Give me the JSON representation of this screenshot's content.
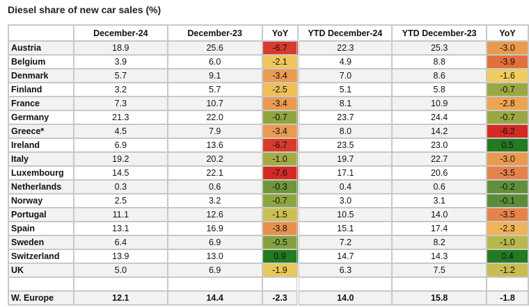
{
  "chart_data": {
    "type": "table",
    "title": "Diesel share of new car sales (%)",
    "columns": [
      "",
      "December-24",
      "December-23",
      "YoY",
      "YTD December-24",
      "YTD December-23",
      "YoY"
    ],
    "rows": [
      {
        "country": "Austria",
        "dec24": "18.9",
        "dec23": "25.6",
        "yoy": "-6.7",
        "yoy_color": "#d83b2b",
        "ytd24": "22.3",
        "ytd23": "25.3",
        "ytd_yoy": "-3.0",
        "ytd_yoy_color": "#ea9a4e"
      },
      {
        "country": "Belgium",
        "dec24": "3.9",
        "dec23": "6.0",
        "yoy": "-2.1",
        "yoy_color": "#f0c75e",
        "ytd24": "4.9",
        "ytd23": "8.8",
        "ytd_yoy": "-3.9",
        "ytd_yoy_color": "#e3703c"
      },
      {
        "country": "Denmark",
        "dec24": "5.7",
        "dec23": "9.1",
        "yoy": "-3.4",
        "yoy_color": "#ea9b4f",
        "ytd24": "7.0",
        "ytd23": "8.6",
        "ytd_yoy": "-1.6",
        "ytd_yoy_color": "#f1cc60"
      },
      {
        "country": "Finland",
        "dec24": "3.2",
        "dec23": "5.7",
        "yoy": "-2.5",
        "yoy_color": "#efbf5a",
        "ytd24": "5.1",
        "ytd23": "5.8",
        "ytd_yoy": "-0.7",
        "ytd_yoy_color": "#9aa843"
      },
      {
        "country": "France",
        "dec24": "7.3",
        "dec23": "10.7",
        "yoy": "-3.4",
        "yoy_color": "#ea9b4f",
        "ytd24": "8.1",
        "ytd23": "10.9",
        "ytd_yoy": "-2.8",
        "ytd_yoy_color": "#eda452"
      },
      {
        "country": "Germany",
        "dec24": "21.3",
        "dec23": "22.0",
        "yoy": "-0.7",
        "yoy_color": "#8fa640",
        "ytd24": "23.7",
        "ytd23": "24.4",
        "ytd_yoy": "-0.7",
        "ytd_yoy_color": "#9aa843"
      },
      {
        "country": "Greece*",
        "dec24": "4.5",
        "dec23": "7.9",
        "yoy": "-3.4",
        "yoy_color": "#ea9b4f",
        "ytd24": "8.0",
        "ytd23": "14.2",
        "ytd_yoy": "-6.2",
        "ytd_yoy_color": "#d42a24"
      },
      {
        "country": "Ireland",
        "dec24": "6.9",
        "dec23": "13.6",
        "yoy": "-6.7",
        "yoy_color": "#d83b2b",
        "ytd24": "23.5",
        "ytd23": "23.0",
        "ytd_yoy": "0.5",
        "ytd_yoy_color": "#237a21"
      },
      {
        "country": "Italy",
        "dec24": "19.2",
        "dec23": "20.2",
        "yoy": "-1.0",
        "yoy_color": "#a3ab45",
        "ytd24": "19.7",
        "ytd23": "22.7",
        "ytd_yoy": "-3.0",
        "ytd_yoy_color": "#ea9a4e"
      },
      {
        "country": "Luxembourg",
        "dec24": "14.5",
        "dec23": "22.1",
        "yoy": "-7.6",
        "yoy_color": "#d42a24",
        "ytd24": "17.1",
        "ytd23": "20.6",
        "ytd_yoy": "-3.5",
        "ytd_yoy_color": "#e6834a"
      },
      {
        "country": "Netherlands",
        "dec24": "0.3",
        "dec23": "0.6",
        "yoy": "-0.3",
        "yoy_color": "#6f963a",
        "ytd24": "0.4",
        "ytd23": "0.6",
        "ytd_yoy": "-0.2",
        "ytd_yoy_color": "#62903a"
      },
      {
        "country": "Norway",
        "dec24": "2.5",
        "dec23": "3.2",
        "yoy": "-0.7",
        "yoy_color": "#8fa640",
        "ytd24": "3.0",
        "ytd23": "3.1",
        "ytd_yoy": "-0.1",
        "ytd_yoy_color": "#5b8d38"
      },
      {
        "country": "Portugal",
        "dec24": "11.1",
        "dec23": "12.6",
        "yoy": "-1.5",
        "yoy_color": "#cdbf55",
        "ytd24": "10.5",
        "ytd23": "14.0",
        "ytd_yoy": "-3.5",
        "ytd_yoy_color": "#e6834a"
      },
      {
        "country": "Spain",
        "dec24": "13.1",
        "dec23": "16.9",
        "yoy": "-3.8",
        "yoy_color": "#e8904a",
        "ytd24": "15.1",
        "ytd23": "17.4",
        "ytd_yoy": "-2.3",
        "ytd_yoy_color": "#efb457"
      },
      {
        "country": "Sweden",
        "dec24": "6.4",
        "dec23": "6.9",
        "yoy": "-0.5",
        "yoy_color": "#84a23e",
        "ytd24": "7.2",
        "ytd23": "8.2",
        "ytd_yoy": "-1.0",
        "ytd_yoy_color": "#b8b84c"
      },
      {
        "country": "Switzerland",
        "dec24": "13.9",
        "dec23": "13.0",
        "yoy": "0.9",
        "yoy_color": "#237a21",
        "ytd24": "14.7",
        "ytd23": "14.3",
        "ytd_yoy": "0.4",
        "ytd_yoy_color": "#237a21"
      },
      {
        "country": "UK",
        "dec24": "5.0",
        "dec23": "6.9",
        "yoy": "-1.9",
        "yoy_color": "#e9c85c",
        "ytd24": "6.3",
        "ytd23": "7.5",
        "ytd_yoy": "-1.2",
        "ytd_yoy_color": "#c8bd53"
      }
    ],
    "total": {
      "country": "W. Europe",
      "dec24": "12.1",
      "dec23": "14.4",
      "yoy": "-2.3",
      "ytd24": "14.0",
      "ytd23": "15.8",
      "ytd_yoy": "-1.8"
    }
  }
}
